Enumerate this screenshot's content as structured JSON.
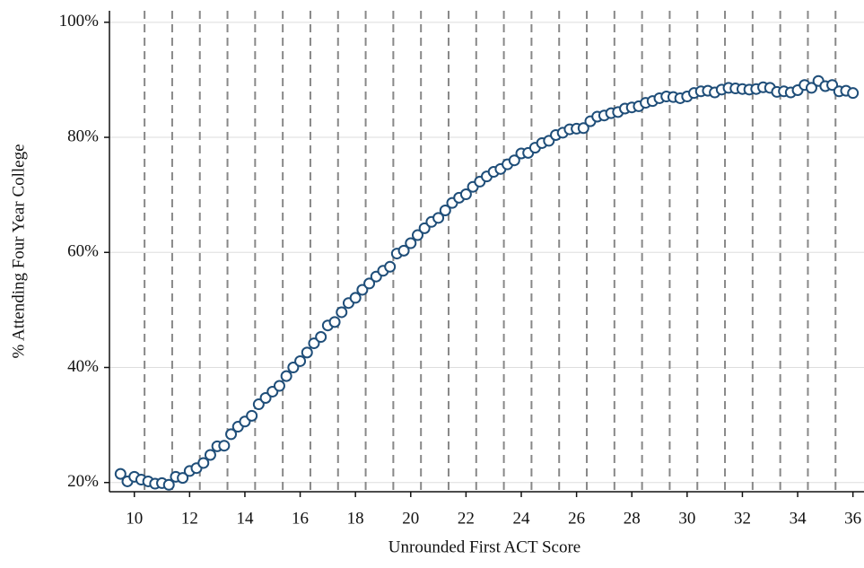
{
  "chart_data": {
    "type": "scatter",
    "x_label": "Unrounded First ACT Score",
    "y_label": "% Attending Four Year College",
    "x": [
      9.5,
      9.75,
      10,
      10.25,
      10.5,
      10.75,
      11,
      11.25,
      11.5,
      11.75,
      12,
      12.25,
      12.5,
      12.75,
      13,
      13.25,
      13.5,
      13.75,
      14,
      14.25,
      14.5,
      14.75,
      15,
      15.25,
      15.5,
      15.75,
      16,
      16.25,
      16.5,
      16.75,
      17,
      17.25,
      17.5,
      17.75,
      18,
      18.25,
      18.5,
      18.75,
      19,
      19.25,
      19.5,
      19.75,
      20,
      20.25,
      20.5,
      20.75,
      21,
      21.25,
      21.5,
      21.75,
      22,
      22.25,
      22.5,
      22.75,
      23,
      23.25,
      23.5,
      23.75,
      24,
      24.25,
      24.5,
      24.75,
      25,
      25.25,
      25.5,
      25.75,
      26,
      26.25,
      26.5,
      26.75,
      27,
      27.25,
      27.5,
      27.75,
      28,
      28.25,
      28.5,
      28.75,
      29,
      29.25,
      29.5,
      29.75,
      30,
      30.25,
      30.5,
      30.75,
      31,
      31.25,
      31.5,
      31.75,
      32,
      32.25,
      32.5,
      32.75,
      33,
      33.25,
      33.5,
      33.75,
      34,
      34.25,
      34.5,
      34.75,
      35,
      35.25,
      35.5,
      35.75,
      36
    ],
    "values": [
      21.5,
      20.2,
      21.0,
      20.5,
      20.2,
      19.8,
      19.9,
      19.6,
      21.0,
      20.8,
      22.0,
      22.5,
      23.4,
      24.8,
      26.3,
      26.4,
      28.4,
      29.7,
      30.6,
      31.6,
      33.6,
      34.7,
      35.8,
      36.8,
      38.5,
      40.0,
      41.1,
      42.6,
      44.2,
      45.3,
      47.3,
      47.9,
      49.6,
      51.2,
      52.1,
      53.5,
      54.6,
      55.8,
      56.8,
      57.5,
      59.8,
      60.3,
      61.6,
      63.0,
      64.2,
      65.3,
      66.0,
      67.3,
      68.6,
      69.5,
      70.1,
      71.4,
      72.3,
      73.2,
      74.0,
      74.5,
      75.3,
      76.0,
      77.2,
      77.3,
      78.2,
      79.0,
      79.4,
      80.4,
      80.8,
      81.4,
      81.5,
      81.6,
      82.8,
      83.6,
      83.8,
      84.2,
      84.4,
      85.0,
      85.2,
      85.4,
      86.0,
      86.3,
      86.8,
      87.1,
      87.0,
      86.8,
      87.1,
      87.7,
      88.0,
      88.1,
      87.8,
      88.3,
      88.6,
      88.5,
      88.4,
      88.3,
      88.4,
      88.7,
      88.6,
      87.9,
      88.0,
      87.8,
      88.2,
      89.1,
      88.6,
      89.8,
      88.9,
      89.1,
      88.0,
      88.1,
      87.7
    ],
    "color": "#1f4e79",
    "vlines": [
      10.37,
      11.37,
      12.37,
      13.37,
      14.37,
      15.37,
      16.37,
      17.37,
      18.37,
      19.37,
      20.37,
      21.37,
      22.37,
      23.37,
      24.37,
      25.37,
      26.37,
      27.37,
      28.37,
      29.37,
      30.37,
      31.37,
      32.37,
      33.37,
      34.37,
      35.37
    ],
    "xlim": [
      9.1,
      36.4
    ],
    "ylim": [
      18.4,
      102
    ],
    "xticks": [
      10,
      12,
      14,
      16,
      18,
      20,
      22,
      24,
      26,
      28,
      30,
      32,
      34,
      36
    ],
    "yticks": [
      {
        "value": 20,
        "label": "20%"
      },
      {
        "value": 40,
        "label": "40%"
      },
      {
        "value": 60,
        "label": "60%"
      },
      {
        "value": 80,
        "label": "80%"
      },
      {
        "value": 100,
        "label": "100%"
      }
    ],
    "grid": true
  }
}
